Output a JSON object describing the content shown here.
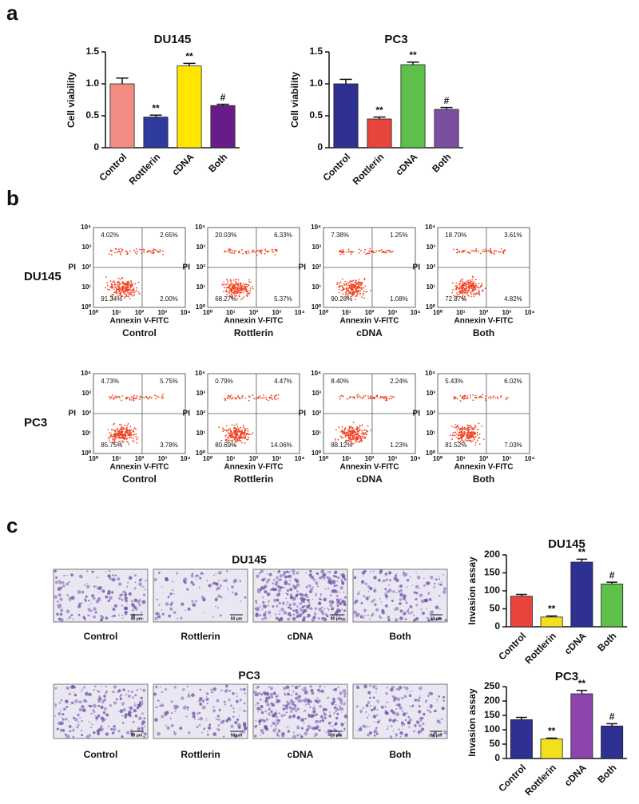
{
  "panel_labels": [
    "a",
    "b",
    "c"
  ],
  "chart_data": [
    {
      "type": "bar",
      "title": "DU145",
      "ylabel": "Cell viability",
      "categories": [
        "Control",
        "Rottlerin",
        "cDNA",
        "Both"
      ],
      "series": [
        {
          "colors": [
            "#f28b82",
            "#2e3a9e",
            "#ffe500",
            "#6a1b8a"
          ],
          "values": [
            1.0,
            0.48,
            1.28,
            0.66
          ],
          "errors": [
            0.09,
            0.03,
            0.04,
            0.02
          ],
          "annotations": [
            null,
            "**",
            "**",
            "#"
          ]
        }
      ],
      "ylim": [
        0,
        1.5
      ],
      "yticks": [
        0,
        0.5,
        {
          "value": 1,
          "label": "1.0"
        },
        1.5
      ]
    },
    {
      "type": "bar",
      "title": "PC3",
      "ylabel": "Cell viability",
      "categories": [
        "Control",
        "Rottlerin",
        "cDNA",
        "Both"
      ],
      "series": [
        {
          "colors": [
            "#2e3192",
            "#e8453c",
            "#5cc04a",
            "#7b4fa0"
          ],
          "values": [
            1.0,
            0.45,
            1.3,
            0.6
          ],
          "errors": [
            0.07,
            0.03,
            0.04,
            0.03
          ],
          "annotations": [
            null,
            "**",
            "**",
            "#"
          ]
        }
      ],
      "ylim": [
        0,
        1.5
      ],
      "yticks": [
        0,
        0.5,
        {
          "value": 1,
          "label": "1.0"
        },
        1.5
      ]
    },
    {
      "type": "bar",
      "title": "DU145",
      "ylabel": "Invasion assay",
      "categories": [
        "Control",
        "Rottlerin",
        "cDNA",
        "Both"
      ],
      "series": [
        {
          "colors": [
            "#e8453c",
            "#f1e01b",
            "#2e3192",
            "#5cc04a"
          ],
          "values": [
            85,
            27,
            180,
            119
          ],
          "errors": [
            5,
            3,
            8,
            5
          ],
          "annotations": [
            null,
            "**",
            "**",
            "#"
          ]
        }
      ],
      "ylim": [
        0,
        200
      ],
      "yticks": [
        0,
        50,
        100,
        150,
        200
      ]
    },
    {
      "type": "bar",
      "title": "PC3",
      "ylabel": "Invasion assay",
      "categories": [
        "Control",
        "Rottlerin",
        "cDNA",
        "Both"
      ],
      "series": [
        {
          "colors": [
            "#2e3192",
            "#f1e01b",
            "#8e44ad",
            "#2e3192"
          ],
          "values": [
            135,
            68,
            225,
            113
          ],
          "errors": [
            8,
            3,
            12,
            8
          ],
          "annotations": [
            null,
            "**",
            "**",
            "#"
          ]
        }
      ],
      "ylim": [
        0,
        250
      ],
      "yticks": [
        0,
        50,
        100,
        150,
        200,
        250
      ]
    }
  ],
  "flow": {
    "axis_x": "Annexin V-FITC",
    "axis_y": "PI",
    "ticks": [
      "10⁰",
      "10¹",
      "10²",
      "10³",
      "10⁴"
    ],
    "rows": [
      {
        "name": "DU145",
        "cells": [
          {
            "label": "Control",
            "quadrants": [
              "4.02%",
              "2.65%",
              "91.34%",
              "2.00%"
            ]
          },
          {
            "label": "Rottlerin",
            "quadrants": [
              "20.03%",
              "6.33%",
              "68.27%",
              "5.37%"
            ]
          },
          {
            "label": "cDNA",
            "quadrants": [
              "7.38%",
              "1.25%",
              "90.28%",
              "1.08%"
            ]
          },
          {
            "label": "Both",
            "quadrants": [
              "18.70%",
              "3.61%",
              "72.87%",
              "4.82%"
            ]
          }
        ]
      },
      {
        "name": "PC3",
        "cells": [
          {
            "label": "Control",
            "quadrants": [
              "4.73%",
              "5.75%",
              "85.75%",
              "3.78%"
            ]
          },
          {
            "label": "Rottlerin",
            "quadrants": [
              "0.79%",
              "4.47%",
              "80.69%",
              "14.06%"
            ]
          },
          {
            "label": "cDNA",
            "quadrants": [
              "8.40%",
              "2.24%",
              "88.12%",
              "1.23%"
            ]
          },
          {
            "label": "Both",
            "quadrants": [
              "5.43%",
              "6.02%",
              "81.52%",
              "7.03%"
            ]
          }
        ]
      }
    ]
  },
  "micrographs": {
    "scale_bar": "50 μm",
    "rows": [
      {
        "title": "DU145",
        "labels": [
          "Control",
          "Rottlerin",
          "cDNA",
          "Both"
        ]
      },
      {
        "title": "PC3",
        "labels": [
          "Control",
          "Rottlerin",
          "cDNA",
          "Both"
        ]
      }
    ]
  }
}
